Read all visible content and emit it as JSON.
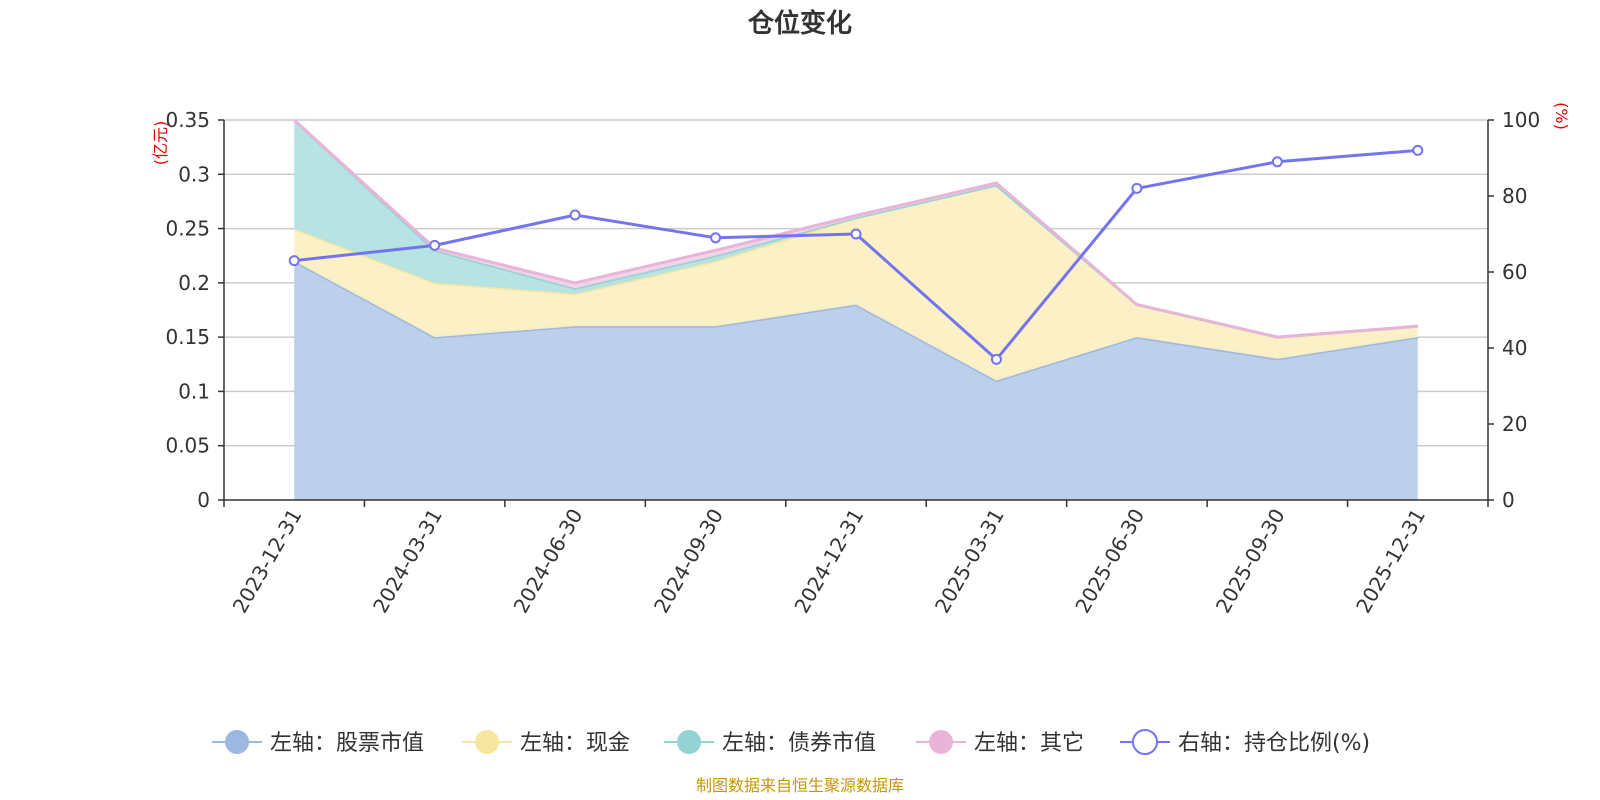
{
  "chart_data": {
    "type": "area",
    "title": "仓位变化",
    "categories": [
      "2023-12-31",
      "2024-03-31",
      "2024-06-30",
      "2024-09-30",
      "2024-12-31",
      "2025-03-31",
      "2025-06-30",
      "2025-09-30",
      "2025-12-31"
    ],
    "left_axis": {
      "unit": "(亿元)",
      "ylim": [
        0,
        0.35
      ],
      "ticks": [
        "0",
        "0.05",
        "0.1",
        "0.15",
        "0.2",
        "0.25",
        "0.3",
        "0.35"
      ]
    },
    "right_axis": {
      "unit": "(%)",
      "ylim": [
        0,
        100
      ],
      "ticks": [
        "0",
        "20",
        "40",
        "60",
        "80",
        "100"
      ]
    },
    "stacked_series": [
      {
        "name": "左轴：股票市值",
        "color": "#9db8e0",
        "fill": "#b8cdea",
        "values": [
          0.22,
          0.15,
          0.16,
          0.16,
          0.18,
          0.11,
          0.15,
          0.13,
          0.15
        ]
      },
      {
        "name": "左轴：现金",
        "color": "#f7e6a0",
        "fill": "#fbefc3",
        "values": [
          0.03,
          0.05,
          0.03,
          0.06,
          0.08,
          0.18,
          0.03,
          0.02,
          0.01
        ]
      },
      {
        "name": "左轴：债券市值",
        "color": "#93d3d3",
        "fill": "#b3e1e0",
        "values": [
          0.1,
          0.03,
          0.005,
          0.005,
          0.0,
          0.0,
          0.0,
          0.0,
          0.0
        ]
      },
      {
        "name": "左轴：其它",
        "color": "#e8b4d8",
        "fill": "#f2d2e8",
        "values": [
          0.0,
          0.002,
          0.005,
          0.005,
          0.002,
          0.002,
          0.0,
          0.0,
          0.0
        ]
      }
    ],
    "line_series": {
      "name": "右轴：持仓比例(%)",
      "color": "#7474ee",
      "values": [
        63,
        67,
        75,
        69,
        70,
        37,
        82,
        89,
        92
      ]
    },
    "legend": [
      "左轴：股票市值",
      "左轴：现金",
      "左轴：债券市值",
      "左轴：其它",
      "右轴：持仓比例(%)"
    ],
    "legend_position": "bottom",
    "grid": true
  },
  "footer": {
    "source": "制图数据来自恒生聚源数据库"
  }
}
